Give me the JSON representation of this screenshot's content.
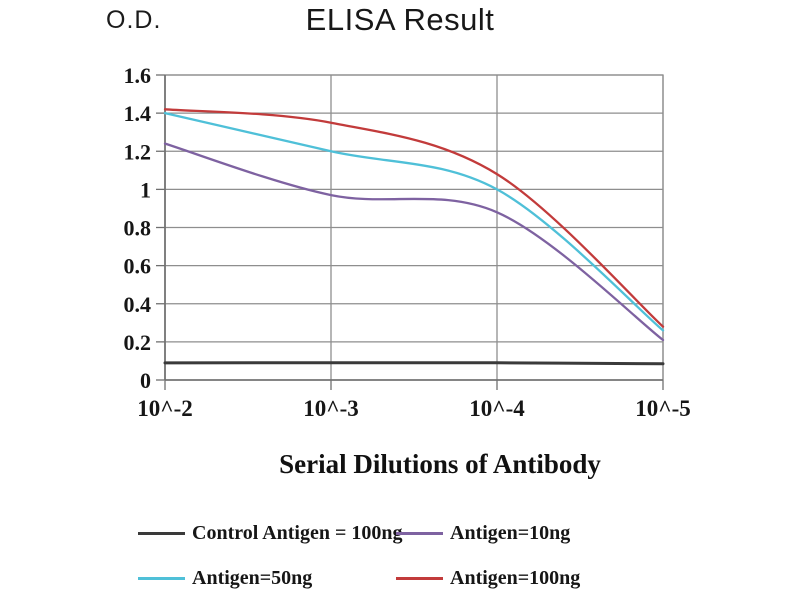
{
  "chart_data": {
    "type": "line",
    "title": "ELISA Result",
    "ylabel": "O.D.",
    "xlabel": "Serial Dilutions of Antibody",
    "categories": [
      "10^-2",
      "10^-3",
      "10^-4",
      "10^-5"
    ],
    "y_ticks": [
      "1.6",
      "1.4",
      "1.2",
      "1",
      "0.8",
      "0.6",
      "0.4",
      "0.2",
      "0"
    ],
    "ylim": [
      0,
      1.6
    ],
    "grid": true,
    "legend_position": "bottom",
    "grid_color": "#8e8e8e",
    "axis_color": "#6f6f6f",
    "series": [
      {
        "name": "Control Antigen = 100ng",
        "color": "#3a3a3a",
        "values": [
          0.09,
          0.09,
          0.09,
          0.085
        ]
      },
      {
        "name": "Antigen=10ng",
        "color": "#7e62a1",
        "values": [
          1.24,
          0.97,
          0.88,
          0.21
        ]
      },
      {
        "name": "Antigen=50ng",
        "color": "#4fc0d8",
        "values": [
          1.4,
          1.2,
          1.0,
          0.26
        ]
      },
      {
        "name": "Antigen=100ng",
        "color": "#c23b3b",
        "values": [
          1.42,
          1.35,
          1.08,
          0.28
        ]
      }
    ]
  }
}
